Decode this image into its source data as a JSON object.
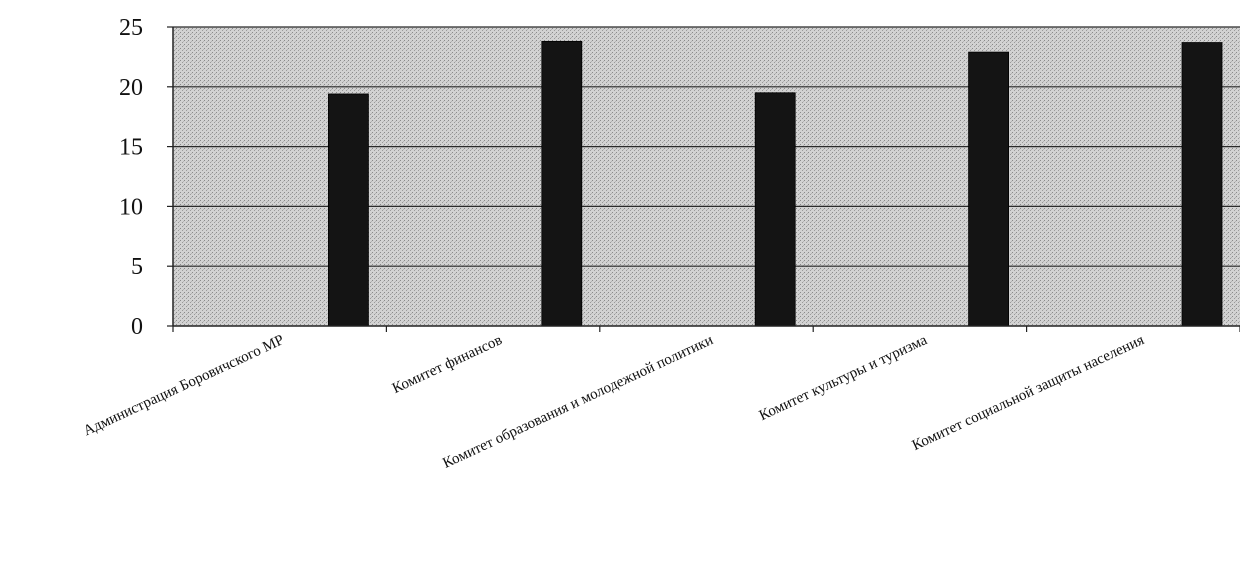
{
  "chart_data": {
    "type": "bar",
    "title": "",
    "xlabel": "",
    "ylabel": "",
    "categories": [
      "Администрация Боровичского МР",
      "Комитет финансов",
      "Комитет образования и молодежной политики",
      "Комитет культуры и туризма",
      "Комитет социальной защиты населения"
    ],
    "values": [
      19.4,
      23.8,
      19.5,
      22.9,
      23.7
    ],
    "ylim": [
      0,
      25
    ],
    "yticks": [
      0,
      5,
      10,
      15,
      20,
      25
    ],
    "grid": true,
    "legend": "none",
    "colors": {
      "plot_background": "#c8c8c8",
      "bar": "#141414",
      "grid": "#2a2a2a"
    }
  }
}
